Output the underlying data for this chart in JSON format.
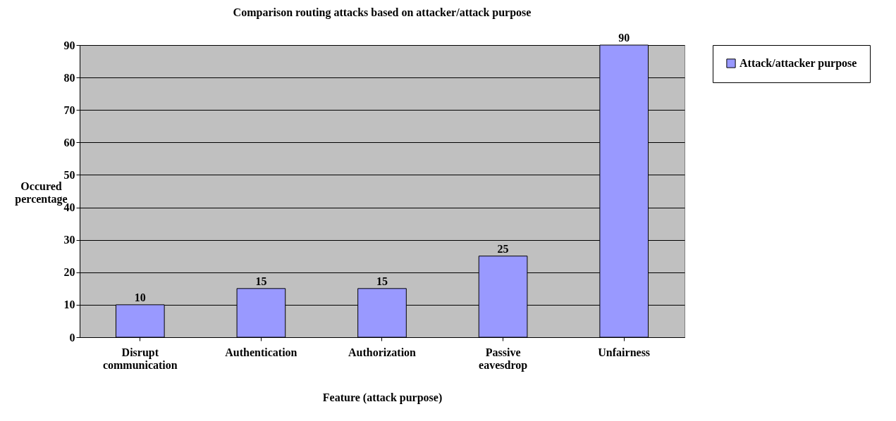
{
  "chart_data": {
    "type": "bar",
    "title": "Comparison routing attacks based on attacker/attack purpose",
    "xlabel": "Feature (attack purpose)",
    "ylabel": "Occured percentage",
    "categories": [
      "Disrupt communication",
      "Authentication",
      "Authorization",
      "Passive eavesdrop",
      "Unfairness"
    ],
    "series": [
      {
        "name": "Attack/attacker purpose",
        "color": "#9999ff",
        "values": [
          10,
          15,
          15,
          25,
          90
        ]
      }
    ],
    "ylim": [
      0,
      90
    ],
    "yticks": [
      0,
      10,
      20,
      30,
      40,
      50,
      60,
      70,
      80,
      90
    ],
    "grid": "y",
    "legend": "right",
    "data_labels": true
  }
}
